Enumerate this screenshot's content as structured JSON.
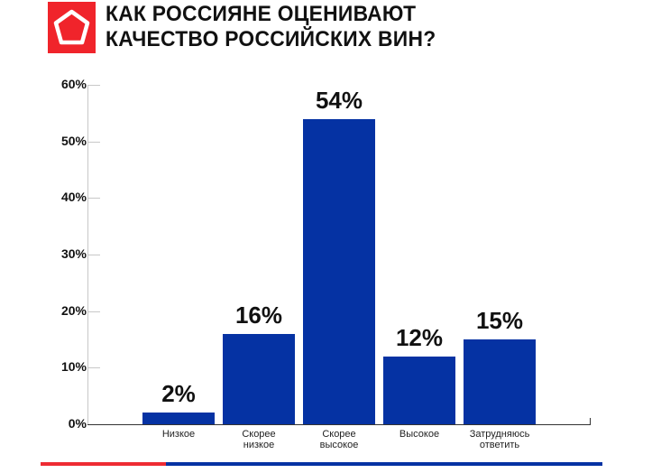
{
  "header": {
    "logo_icon": "pentagon-icon",
    "title_line1": "КАК РОССИЯНЕ ОЦЕНИВАЮТ",
    "title_line2": "КАЧЕСТВО РОССИЙСКИХ ВИН?"
  },
  "colors": {
    "bar": "#0532a3",
    "logo": "#f0242b",
    "accent_red": "#ee2b33",
    "accent_blue": "#0532a3"
  },
  "chart_data": {
    "type": "bar",
    "title": "КАК РОССИЯНЕ ОЦЕНИВАЮТ КАЧЕСТВО РОССИЙСКИХ ВИН?",
    "categories": [
      "Низкое",
      "Скорее низкое",
      "Скорее высокое",
      "Высокое",
      "Затрудняюсь ответить"
    ],
    "values": [
      2,
      16,
      54,
      12,
      15
    ],
    "value_labels": [
      "2%",
      "16%",
      "54%",
      "12%",
      "15%"
    ],
    "xlabel": "",
    "ylabel": "",
    "ylim": [
      0,
      60
    ],
    "yticks": [
      "0%",
      "10%",
      "20%",
      "30%",
      "40%",
      "50%",
      "60%"
    ],
    "grid": false,
    "legend": null
  },
  "xlabels": [
    {
      "l1": "Низкое",
      "l2": ""
    },
    {
      "l1": "Скорее",
      "l2": "низкое"
    },
    {
      "l1": "Скорее",
      "l2": "высокое"
    },
    {
      "l1": "Высокое",
      "l2": ""
    },
    {
      "l1": "Затрудняюсь",
      "l2": "ответить"
    }
  ]
}
